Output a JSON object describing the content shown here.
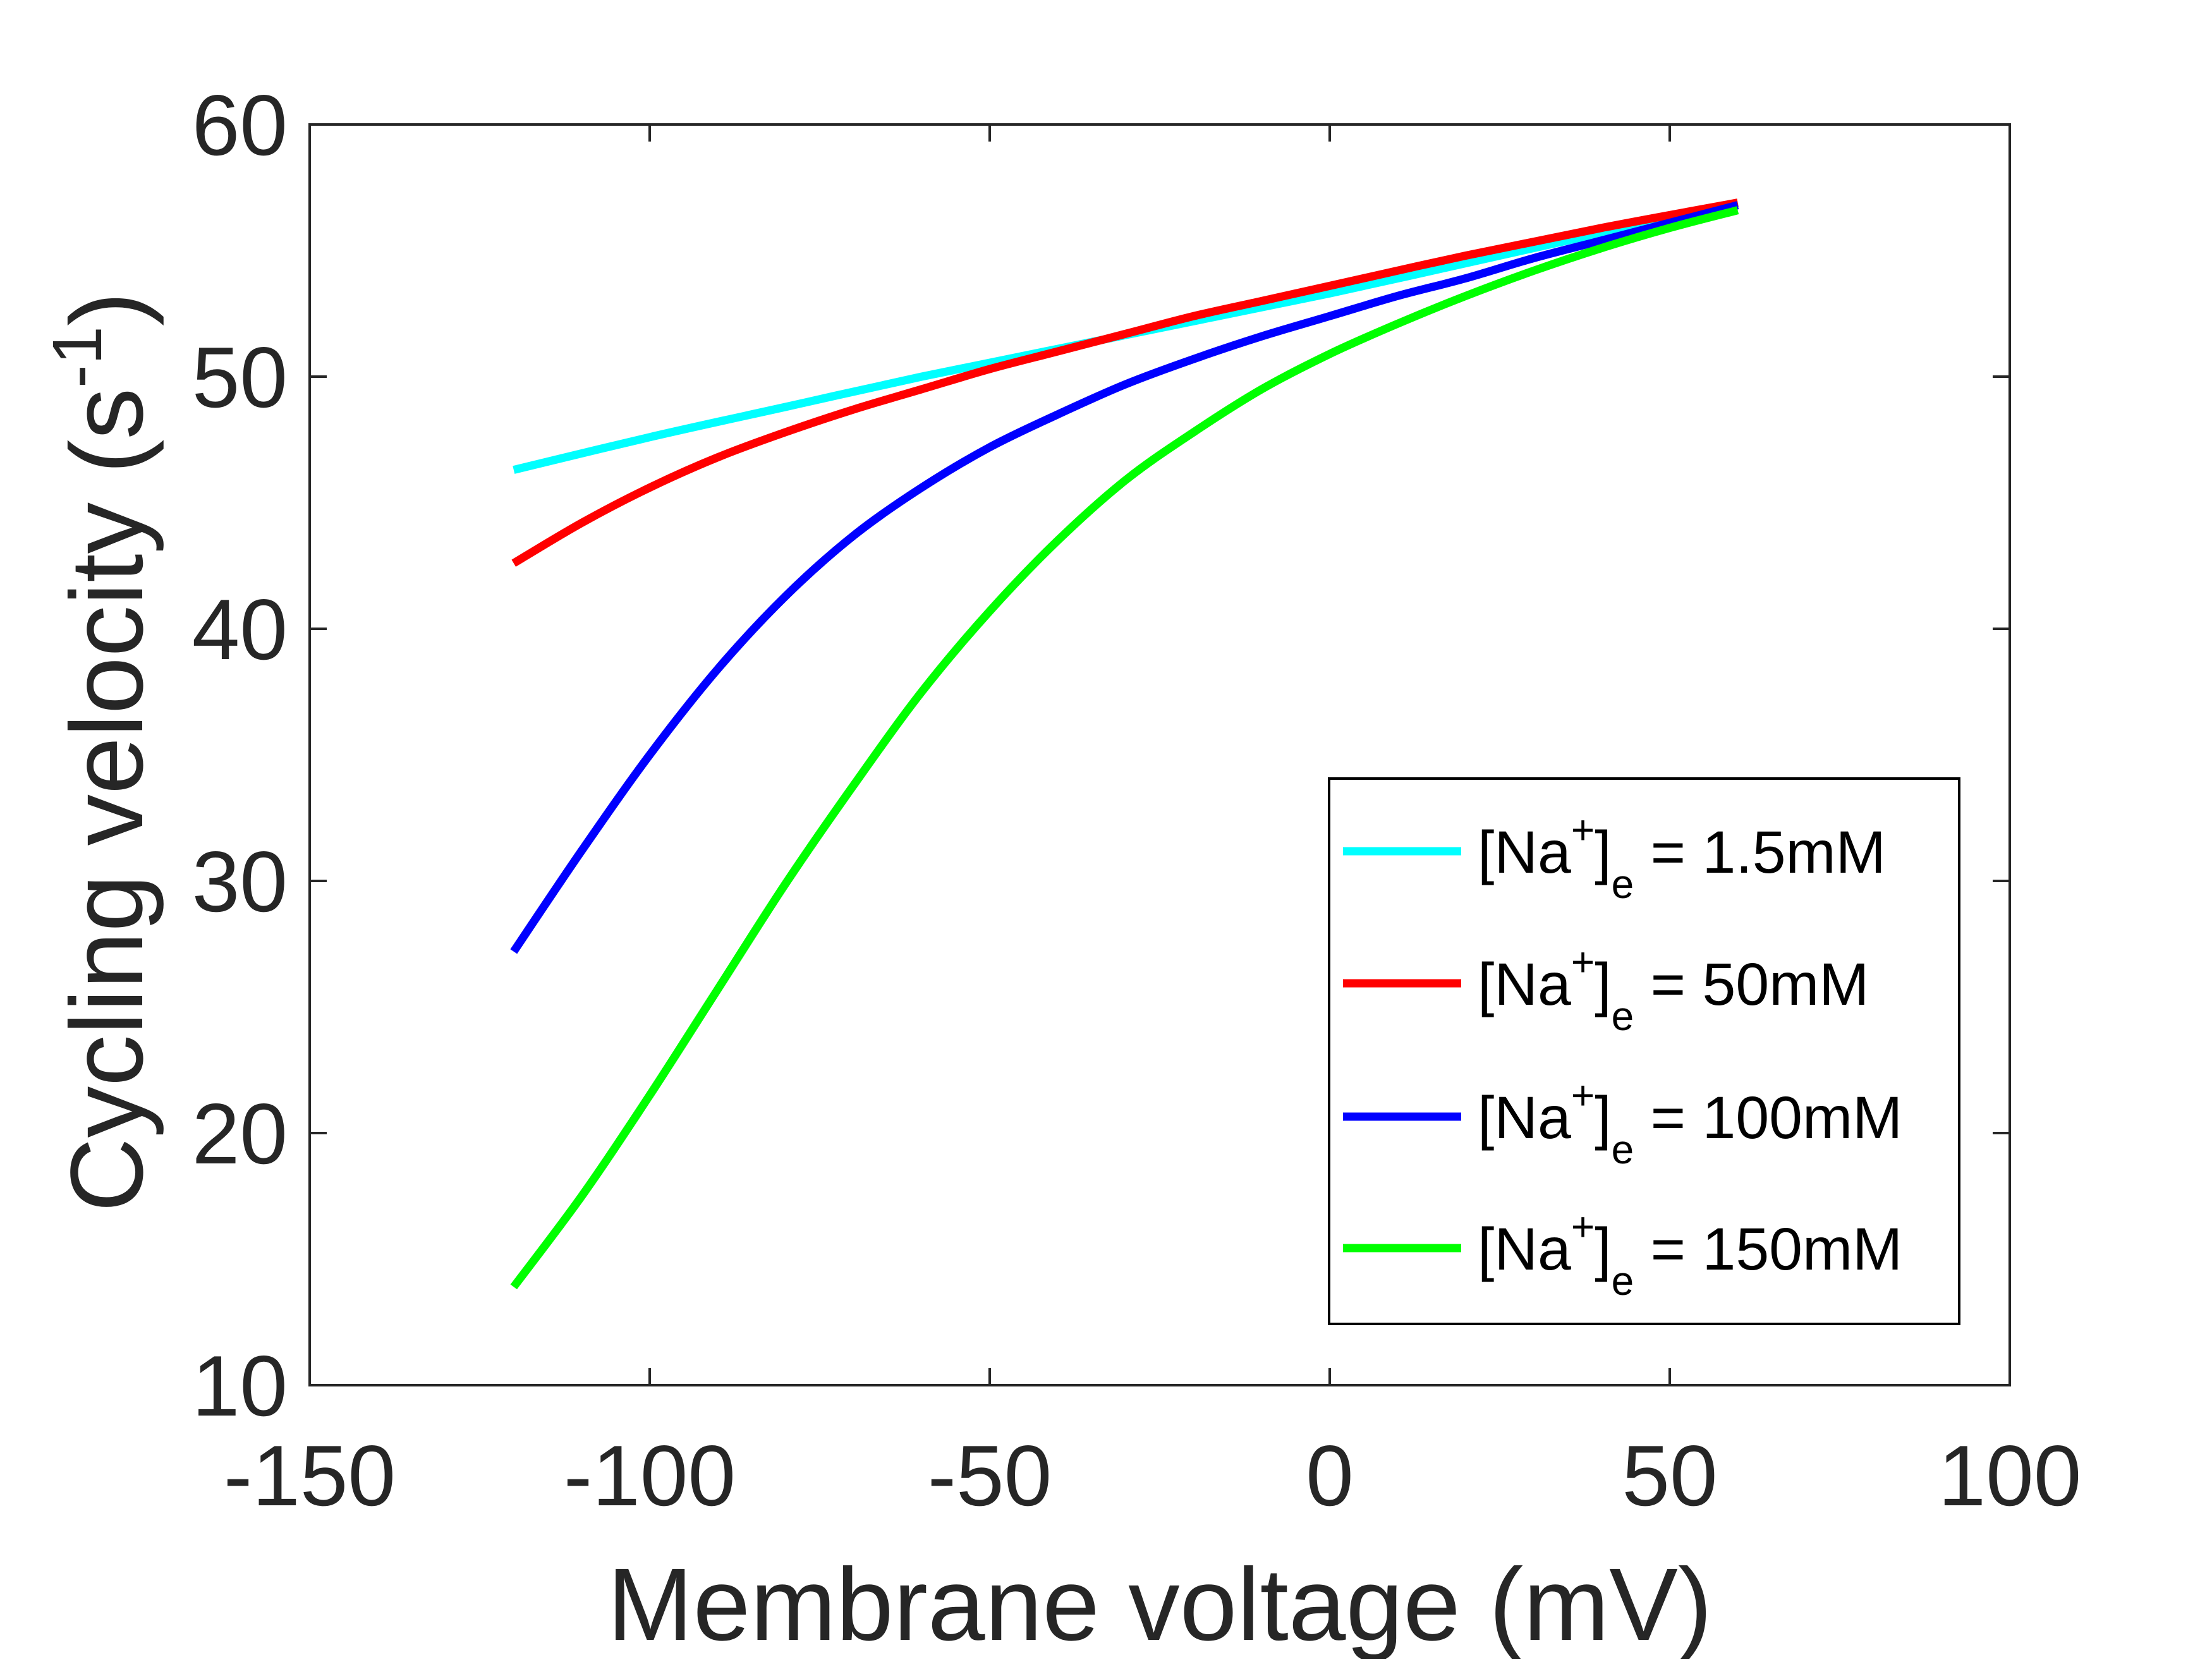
{
  "chart_data": {
    "type": "line",
    "xlabel": "Membrane voltage (mV)",
    "ylabel_main": "Cycling velocity (s",
    "ylabel_sup": "-1",
    "ylabel_close": ")",
    "xlim": [
      -150,
      100
    ],
    "ylim": [
      10,
      60
    ],
    "xticks": [
      -150,
      -100,
      -50,
      0,
      50,
      100
    ],
    "yticks": [
      10,
      20,
      30,
      40,
      50,
      60
    ],
    "grid": false,
    "legend_placement": "bottom-right",
    "series": [
      {
        "legend_prefix": "[Na",
        "legend_sup": "+",
        "legend_bracket": "]",
        "legend_sub": "e",
        "legend_rest": " = 1.5mM",
        "color": "#00FFFF",
        "x": [
          -120,
          -100,
          -80,
          -60,
          -40,
          -20,
          0,
          20,
          40,
          60
        ],
        "y": [
          46.3,
          47.6,
          48.8,
          50.0,
          51.1,
          52.2,
          53.3,
          54.5,
          55.7,
          56.9
        ]
      },
      {
        "legend_prefix": "[Na",
        "legend_sup": "+",
        "legend_bracket": "]",
        "legend_sub": "e",
        "legend_rest": " = 50mM",
        "color": "#FF0000",
        "x": [
          -120,
          -110,
          -100,
          -90,
          -80,
          -70,
          -60,
          -50,
          -40,
          -30,
          -20,
          -10,
          0,
          20,
          40,
          60
        ],
        "y": [
          42.6,
          44.2,
          45.6,
          46.8,
          47.8,
          48.7,
          49.5,
          50.3,
          51.0,
          51.7,
          52.4,
          53.0,
          53.6,
          54.8,
          55.9,
          56.9
        ]
      },
      {
        "legend_prefix": "[Na",
        "legend_sup": "+",
        "legend_bracket": "]",
        "legend_sub": "e",
        "legend_rest": " = 100mM",
        "color": "#0000FF",
        "x": [
          -120,
          -110,
          -100,
          -90,
          -80,
          -70,
          -60,
          -50,
          -40,
          -30,
          -20,
          -10,
          0,
          10,
          20,
          30,
          40,
          50,
          60
        ],
        "y": [
          27.2,
          31.2,
          35.0,
          38.4,
          41.3,
          43.7,
          45.6,
          47.2,
          48.5,
          49.7,
          50.7,
          51.6,
          52.4,
          53.2,
          53.9,
          54.7,
          55.4,
          56.1,
          56.8
        ]
      },
      {
        "legend_prefix": "[Na",
        "legend_sup": "+",
        "legend_bracket": "]",
        "legend_sub": "e",
        "legend_rest": " = 150mM",
        "color": "#00FF00",
        "x": [
          -120,
          -110,
          -100,
          -90,
          -80,
          -70,
          -60,
          -50,
          -40,
          -30,
          -20,
          -10,
          0,
          10,
          20,
          30,
          40,
          50,
          60
        ],
        "y": [
          13.9,
          17.5,
          21.5,
          25.7,
          29.9,
          33.8,
          37.5,
          40.7,
          43.5,
          45.9,
          47.8,
          49.5,
          50.9,
          52.1,
          53.2,
          54.2,
          55.1,
          55.9,
          56.6
        ]
      }
    ]
  }
}
